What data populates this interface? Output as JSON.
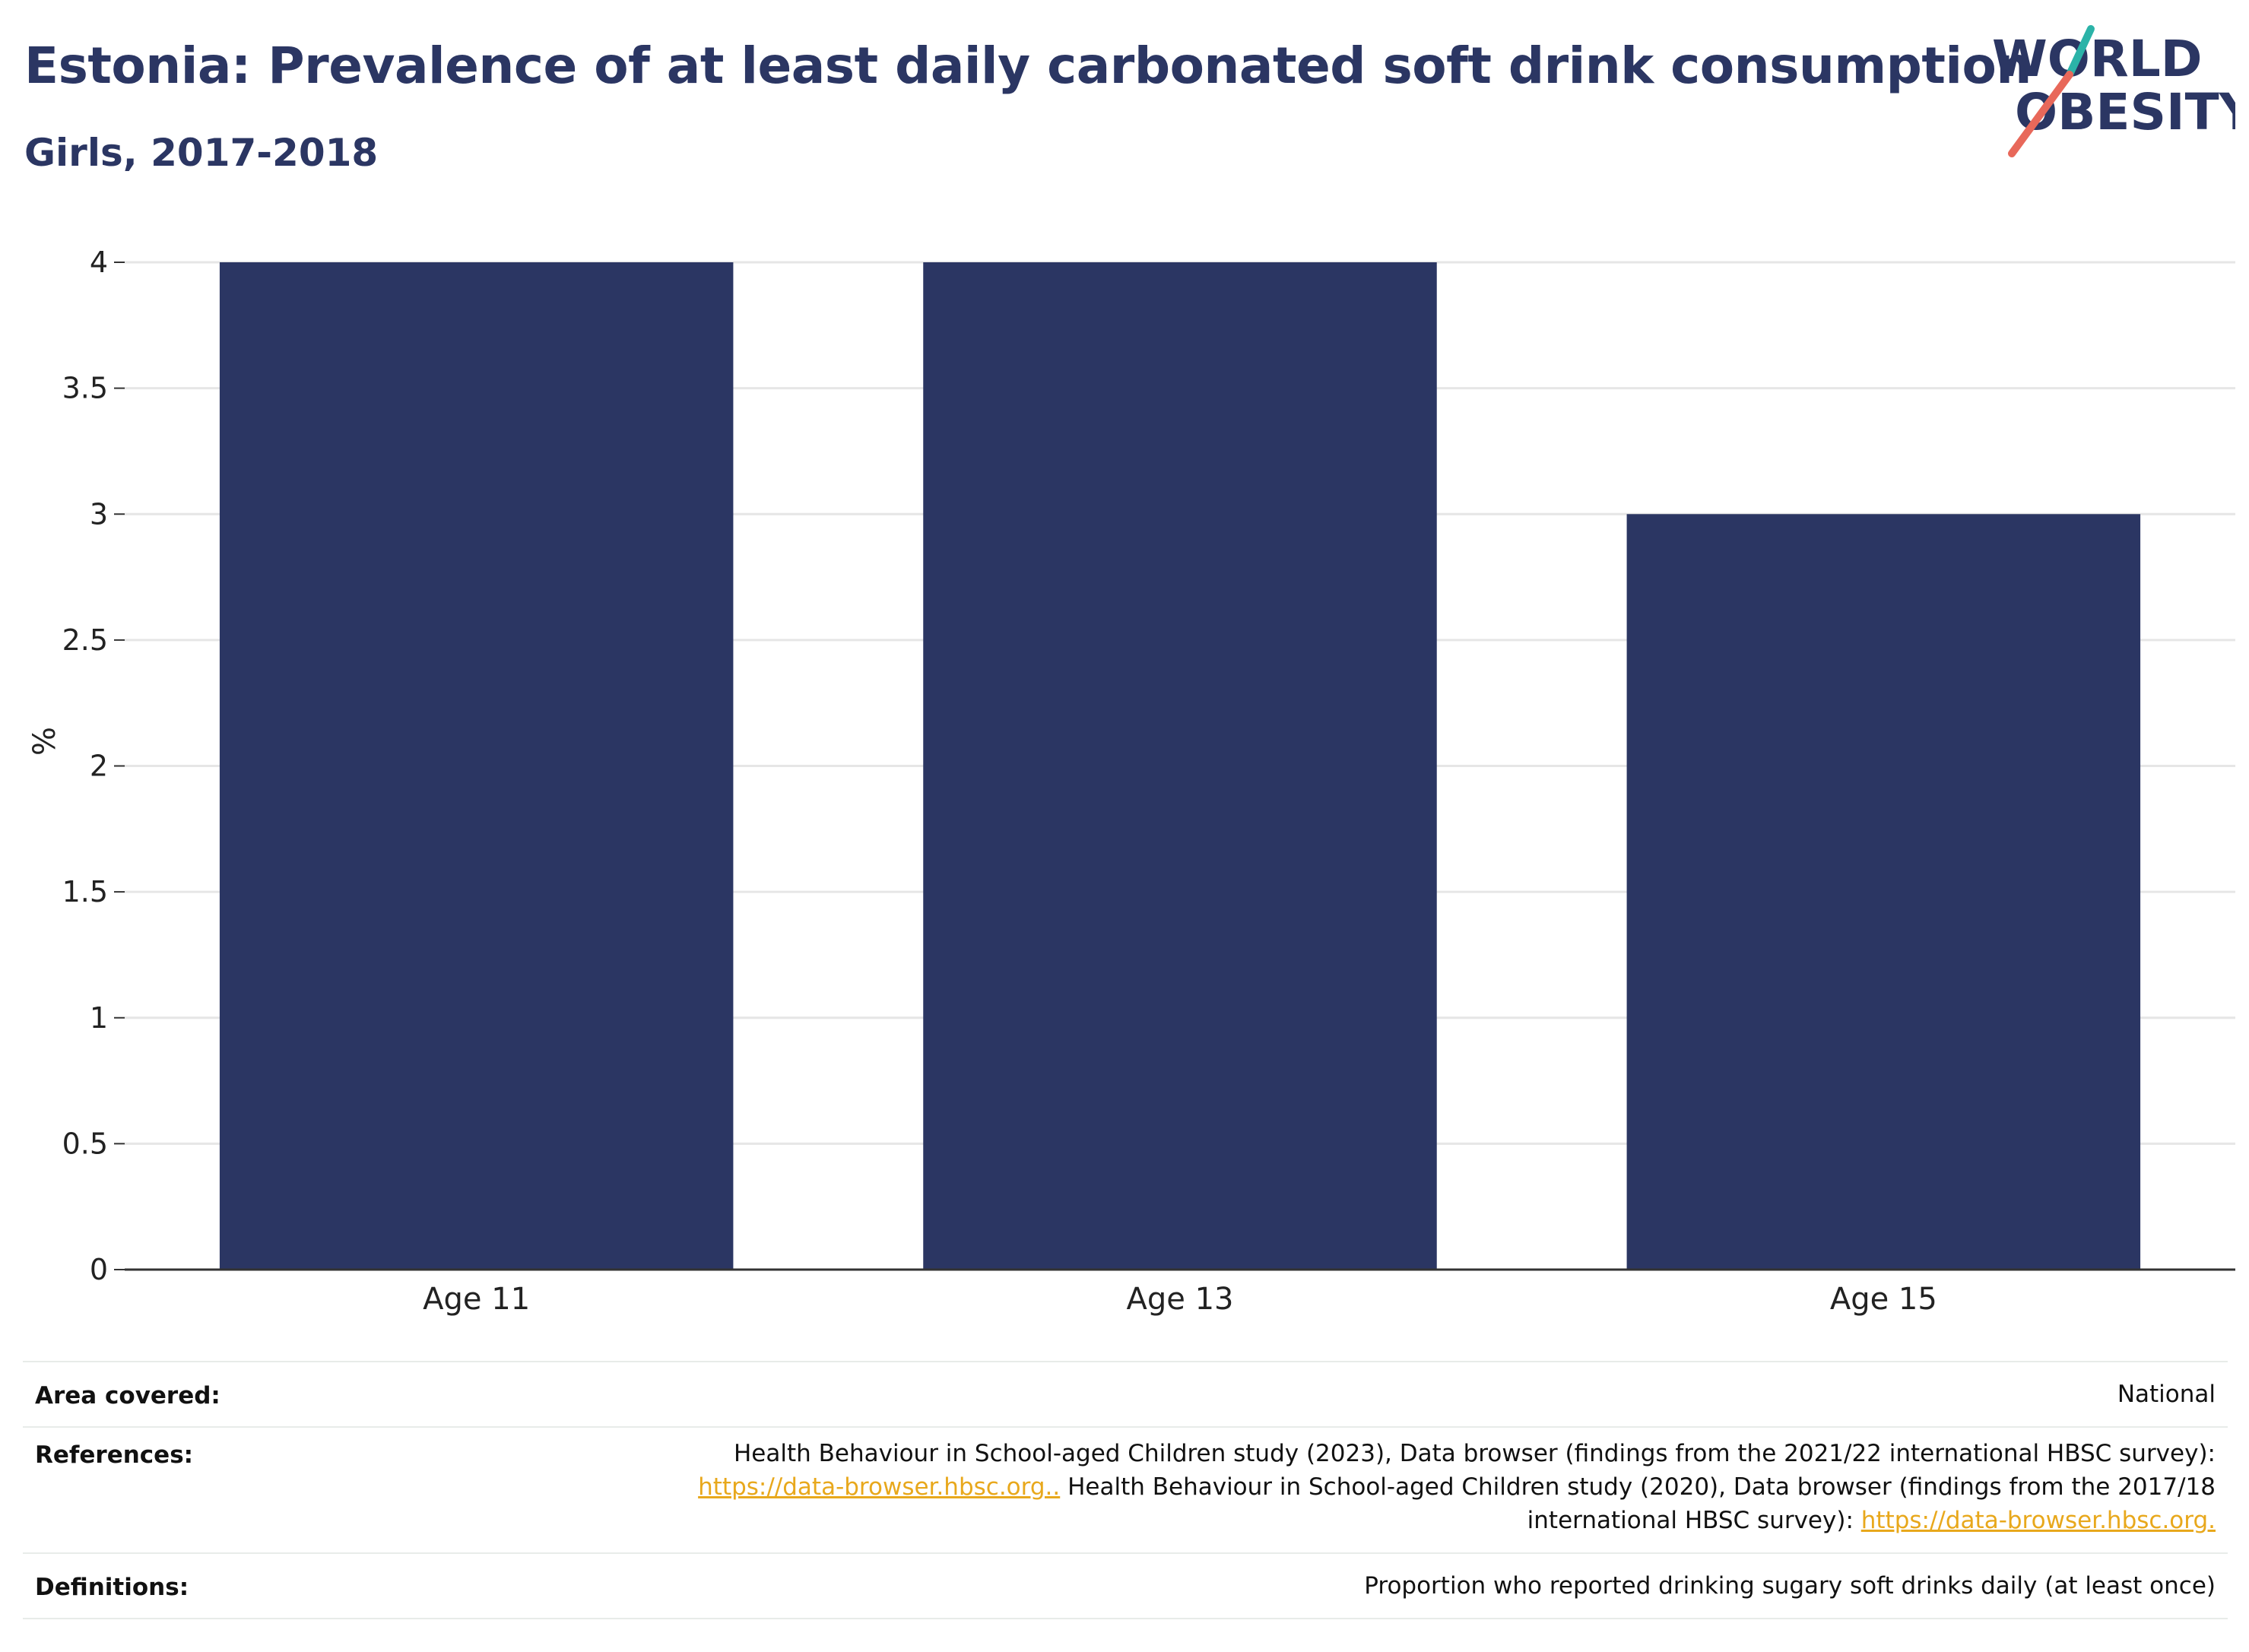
{
  "header": {
    "title": "Estonia: Prevalence of at least daily carbonated soft drink consumption",
    "subtitle": "Girls, 2017-2018"
  },
  "logo": {
    "line1": "WORLD",
    "line2": "OBESITY",
    "accent_teal": "#2bb3a8",
    "accent_red": "#e8685a"
  },
  "chart_data": {
    "type": "bar",
    "categories": [
      "Age 11",
      "Age 13",
      "Age 15"
    ],
    "values": [
      4,
      4,
      3
    ],
    "ylabel": "%",
    "ylim": [
      0,
      4
    ],
    "yticks": [
      0,
      0.5,
      1,
      1.5,
      2,
      2.5,
      3,
      3.5,
      4
    ],
    "ytick_labels": [
      "0",
      "0.5",
      "1",
      "1.5",
      "2",
      "2.5",
      "3",
      "3.5",
      "4"
    ],
    "bar_color": "#2b3663",
    "grid": true
  },
  "meta": {
    "area_label": "Area covered:",
    "area_value": "National",
    "references_label": "References:",
    "references_line1": "Health Behaviour in School-aged Children study (2023), Data browser (findings from the 2021/22 international HBSC survey):",
    "references_link1": "https://data-browser.hbsc.org..",
    "references_line2": " Health Behaviour in School-aged Children study (2020), Data browser (findings from the 2017/18",
    "references_line3": "international HBSC survey): ",
    "references_link2": "https://data-browser.hbsc.org.",
    "definitions_label": "Definitions:",
    "definitions_value": "Proportion who reported drinking sugary soft drinks daily (at least once)"
  }
}
